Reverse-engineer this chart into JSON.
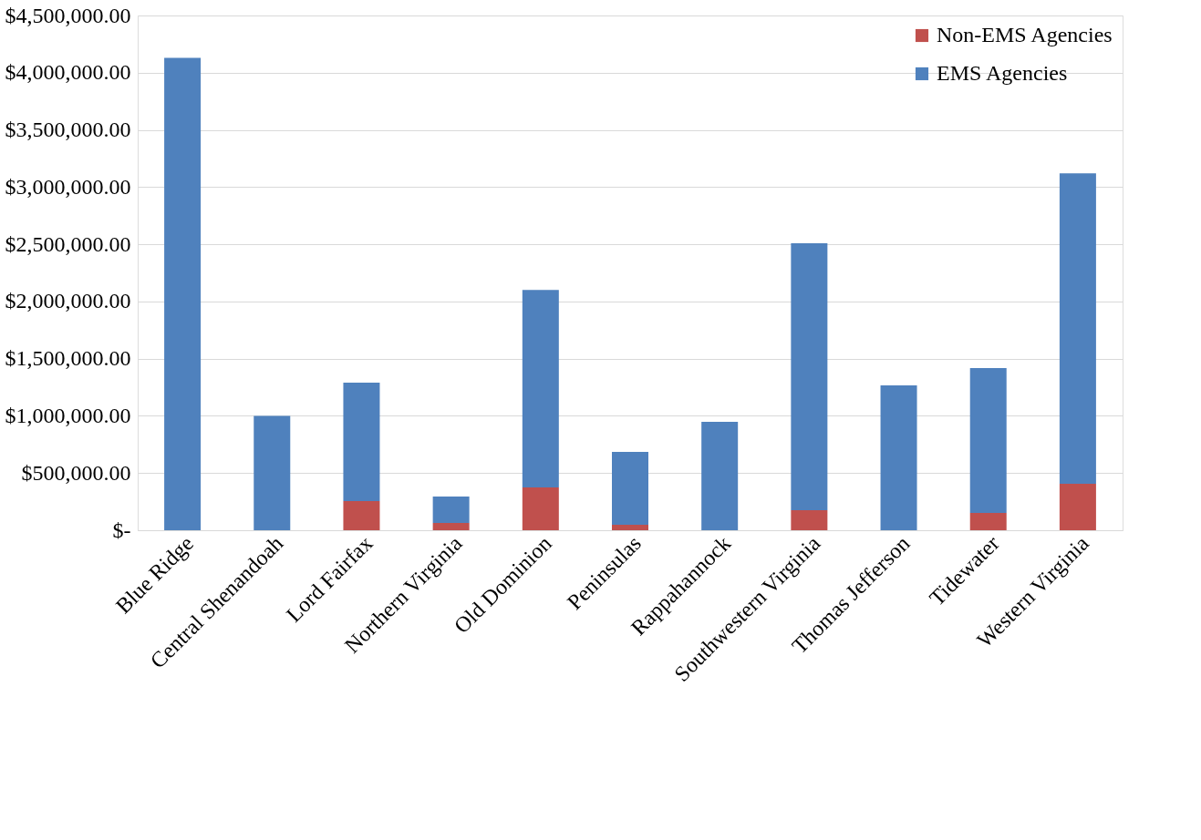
{
  "chart_data": {
    "type": "bar",
    "stacked": true,
    "categories": [
      "Blue Ridge",
      "Central Shenandoah",
      "Lord Fairfax",
      "Northern Virginia",
      "Old Dominion",
      "Peninsulas",
      "Rappahannock",
      "Southwestern Virginia",
      "Thomas Jefferson",
      "Tidewater",
      "Western Virginia"
    ],
    "series": [
      {
        "name": "Non-EMS Agencies",
        "color": "#c0504d",
        "values": [
          0,
          0,
          255000,
          64000,
          374000,
          48000,
          0,
          175000,
          0,
          151000,
          406000
        ]
      },
      {
        "name": "EMS Agencies",
        "color": "#4f81bd",
        "values": [
          4130000,
          1000000,
          1035000,
          231000,
          1726000,
          637000,
          947000,
          2333000,
          1266000,
          1266000,
          2715000
        ]
      }
    ],
    "ylim": [
      0,
      4500000
    ],
    "yticks": [
      {
        "value": 0,
        "label": "$-"
      },
      {
        "value": 500000,
        "label": "$500,000.00"
      },
      {
        "value": 1000000,
        "label": "$1,000,000.00"
      },
      {
        "value": 1500000,
        "label": "$1,500,000.00"
      },
      {
        "value": 2000000,
        "label": "$2,000,000.00"
      },
      {
        "value": 2500000,
        "label": "$2,500,000.00"
      },
      {
        "value": 3000000,
        "label": "$3,000,000.00"
      },
      {
        "value": 3500000,
        "label": "$3,500,000.00"
      },
      {
        "value": 4000000,
        "label": "$4,000,000.00"
      },
      {
        "value": 4500000,
        "label": "$4,500,000.00"
      }
    ],
    "grid": "y",
    "legend": "top right"
  }
}
